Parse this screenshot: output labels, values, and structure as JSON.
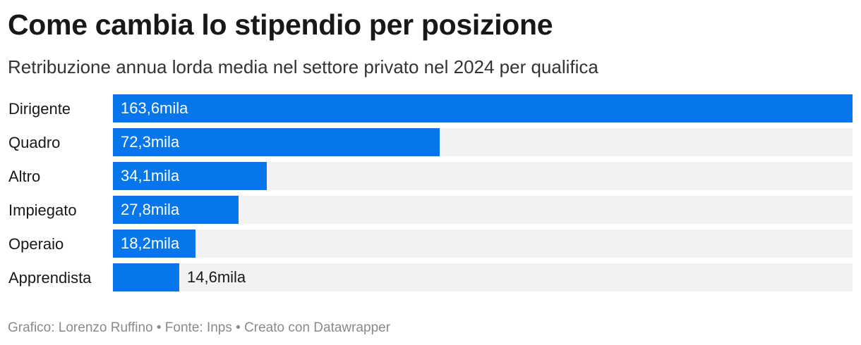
{
  "chart_data": {
    "type": "bar",
    "orientation": "horizontal",
    "title": "Come cambia lo stipendio per posizione",
    "subtitle": "Retribuzione annua lorda media nel settore privato nel 2024 per qualifica",
    "categories": [
      "Dirigente",
      "Quadro",
      "Altro",
      "Impiegato",
      "Operaio",
      "Apprendista"
    ],
    "values": [
      163.6,
      72.3,
      34.1,
      27.8,
      18.2,
      14.6
    ],
    "value_labels": [
      "163,6mila",
      "72,3mila",
      "34,1mila",
      "27,8mila",
      "18,2mila",
      "14,6mila"
    ],
    "xlim": [
      0,
      163.6
    ],
    "grid": false,
    "legend": "none",
    "bar_color": "#0776ea",
    "track_color": "#f2f2f2",
    "footer": "Grafico: Lorenzo Ruffino • Fonte: Inps • Creato con Datawrapper"
  }
}
